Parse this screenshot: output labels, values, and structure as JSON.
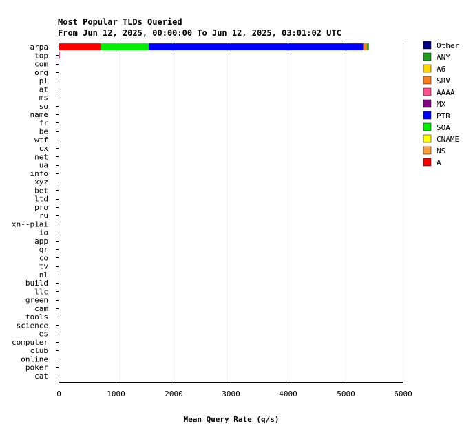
{
  "chart_data": {
    "type": "bar",
    "orientation": "horizontal",
    "stacked": true,
    "title": "Most Popular TLDs Queried",
    "subtitle": "From Jun 12, 2025, 00:00:00 To Jun 12, 2025, 03:01:02 UTC",
    "xlabel": "Mean Query Rate (q/s)",
    "ylabel": "",
    "xlim": [
      0,
      6000
    ],
    "xticks": [
      0,
      1000,
      2000,
      3000,
      4000,
      5000,
      6000
    ],
    "grid": "vertical",
    "legend_position": "right",
    "categories": [
      "arpa",
      "top",
      "com",
      "org",
      "pl",
      "at",
      "ms",
      "so",
      "name",
      "fr",
      "be",
      "wtf",
      "cx",
      "net",
      "ua",
      "info",
      "xyz",
      "bet",
      "ltd",
      "pro",
      "ru",
      "xn--p1ai",
      "io",
      "app",
      "gr",
      "co",
      "tv",
      "nl",
      "build",
      "llc",
      "green",
      "cam",
      "tools",
      "science",
      "es",
      "computer",
      "club",
      "online",
      "poker",
      "cat"
    ],
    "series": [
      {
        "name": "A",
        "color": "#ff0000",
        "values": [
          735,
          0,
          0,
          0,
          0,
          0,
          0,
          0,
          0,
          0,
          0,
          0,
          0,
          0,
          0,
          0,
          0,
          0,
          0,
          0,
          0,
          0,
          0,
          0,
          0,
          0,
          0,
          0,
          0,
          0,
          0,
          0,
          0,
          0,
          0,
          0,
          0,
          0,
          0,
          0
        ]
      },
      {
        "name": "SOA",
        "color": "#00ee00",
        "values": [
          835,
          0,
          0,
          0,
          0,
          0,
          0,
          0,
          0,
          0,
          0,
          0,
          0,
          0,
          0,
          0,
          0,
          0,
          0,
          0,
          0,
          0,
          0,
          0,
          0,
          0,
          0,
          0,
          0,
          0,
          0,
          0,
          0,
          0,
          0,
          0,
          0,
          0,
          0,
          0
        ]
      },
      {
        "name": "PTR",
        "color": "#0000ff",
        "values": [
          3740,
          0,
          0,
          0,
          0,
          0,
          0,
          0,
          0,
          0,
          0,
          0,
          0,
          0,
          0,
          0,
          0,
          0,
          0,
          0,
          0,
          0,
          0,
          0,
          0,
          0,
          0,
          0,
          0,
          0,
          0,
          0,
          0,
          0,
          0,
          0,
          0,
          0,
          0,
          0
        ]
      },
      {
        "name": "NS",
        "color": "#ffa040",
        "values": [
          0,
          0,
          0,
          0,
          0,
          0,
          0,
          0,
          0,
          0,
          0,
          0,
          0,
          0,
          0,
          0,
          0,
          0,
          0,
          0,
          0,
          0,
          0,
          0,
          0,
          0,
          0,
          0,
          0,
          0,
          0,
          0,
          0,
          0,
          0,
          0,
          0,
          0,
          0,
          0
        ]
      },
      {
        "name": "CNAME",
        "color": "#ffff00",
        "values": [
          0,
          0,
          0,
          0,
          0,
          0,
          0,
          0,
          0,
          0,
          0,
          0,
          0,
          0,
          0,
          0,
          0,
          0,
          0,
          0,
          0,
          0,
          0,
          0,
          0,
          0,
          0,
          0,
          0,
          0,
          0,
          0,
          0,
          0,
          0,
          0,
          0,
          0,
          0,
          0
        ]
      },
      {
        "name": "MX",
        "color": "#800080",
        "values": [
          0,
          0,
          0,
          0,
          0,
          0,
          0,
          0,
          0,
          0,
          0,
          0,
          0,
          0,
          0,
          0,
          0,
          0,
          0,
          0,
          0,
          0,
          0,
          0,
          0,
          0,
          0,
          0,
          0,
          0,
          0,
          0,
          0,
          0,
          0,
          0,
          0,
          0,
          0,
          0
        ]
      },
      {
        "name": "AAAA",
        "color": "#ff5090",
        "values": [
          0,
          25,
          5,
          5,
          4,
          4,
          4,
          4,
          4,
          3,
          3,
          3,
          3,
          3,
          3,
          3,
          3,
          3,
          3,
          3,
          3,
          3,
          3,
          3,
          3,
          3,
          3,
          3,
          3,
          3,
          3,
          3,
          3,
          3,
          3,
          3,
          3,
          3,
          3,
          3
        ]
      },
      {
        "name": "SRV",
        "color": "#ff8020",
        "values": [
          65,
          0,
          0,
          0,
          0,
          0,
          0,
          0,
          0,
          0,
          0,
          0,
          0,
          0,
          0,
          0,
          0,
          0,
          0,
          0,
          0,
          0,
          0,
          0,
          0,
          0,
          0,
          0,
          0,
          0,
          0,
          0,
          0,
          0,
          0,
          0,
          0,
          0,
          0,
          0
        ]
      },
      {
        "name": "A6",
        "color": "#ffd700",
        "values": [
          0,
          0,
          0,
          0,
          0,
          0,
          0,
          0,
          0,
          0,
          0,
          0,
          0,
          0,
          0,
          0,
          0,
          0,
          0,
          0,
          0,
          0,
          0,
          0,
          0,
          0,
          0,
          0,
          0,
          0,
          0,
          0,
          0,
          0,
          0,
          0,
          0,
          0,
          0,
          0
        ]
      },
      {
        "name": "ANY",
        "color": "#20a020",
        "values": [
          35,
          0,
          0,
          0,
          0,
          0,
          0,
          0,
          0,
          0,
          0,
          0,
          0,
          0,
          0,
          0,
          0,
          0,
          0,
          0,
          0,
          0,
          0,
          0,
          0,
          0,
          0,
          0,
          0,
          0,
          0,
          0,
          0,
          0,
          0,
          0,
          0,
          0,
          0,
          0
        ]
      },
      {
        "name": "Other",
        "color": "#000080",
        "values": [
          0,
          0,
          0,
          0,
          0,
          0,
          0,
          0,
          0,
          0,
          0,
          0,
          0,
          0,
          0,
          0,
          0,
          0,
          0,
          0,
          0,
          0,
          0,
          0,
          0,
          0,
          0,
          0,
          0,
          0,
          0,
          0,
          0,
          0,
          0,
          0,
          0,
          0,
          0,
          0
        ]
      }
    ],
    "legend_order": [
      "Other",
      "ANY",
      "A6",
      "SRV",
      "AAAA",
      "MX",
      "PTR",
      "SOA",
      "CNAME",
      "NS",
      "A"
    ]
  }
}
